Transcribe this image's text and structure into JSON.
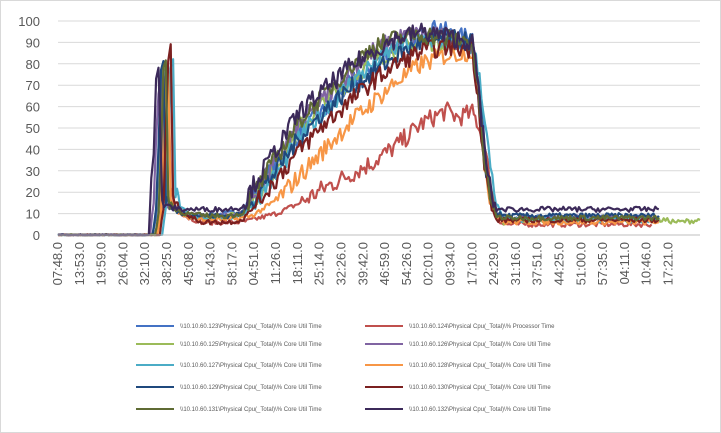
{
  "chart_data": {
    "type": "line",
    "title": "",
    "xlabel": "",
    "ylabel": "",
    "ylim": [
      0,
      100
    ],
    "y_ticks": [
      0,
      10,
      20,
      30,
      40,
      50,
      60,
      70,
      80,
      90,
      100
    ],
    "x_ticks": [
      "07:48.0",
      "13:53.0",
      "19:59.0",
      "26:04.0",
      "32:10.0",
      "38:25.0",
      "45:08.0",
      "51:43.0",
      "58:17.0",
      "04:51.0",
      "11:26.0",
      "18:11.0",
      "25:14.0",
      "32:26.0",
      "39:42.0",
      "46:59.0",
      "54:26.0",
      "02:01.0",
      "09:34.0",
      "17:10.0",
      "24:29.0",
      "31:16.0",
      "37:51.0",
      "44:25.0",
      "51:00.0",
      "57:35.0",
      "04:11.0",
      "10:46.0",
      "17:21.0"
    ],
    "grid": {
      "horizontal": true,
      "vertical": false
    },
    "legend_position": "bottom",
    "x_tick_position": [
      0,
      0.9,
      1.8,
      2.7,
      3.6,
      4.5,
      5.4,
      6.3,
      7.2,
      8.1,
      9.0,
      9.9,
      10.8,
      11.7,
      12.6,
      13.5,
      14.4,
      15.3,
      16.2,
      17.1,
      18.0,
      18.9,
      19.8,
      20.7,
      21.6,
      22.5,
      23.4,
      24.3,
      25.2
    ],
    "x_range": [
      0,
      26.5
    ],
    "series": [
      {
        "name": "\\\\10.10.60.123\\Physical Cpu(_Total)\\% Core Util Time",
        "color": "#4472c4",
        "x": [
          0,
          3.9,
          4.05,
          4.15,
          4.25,
          4.35,
          4.45,
          4.65,
          5.2,
          6,
          7,
          7.6,
          8,
          9,
          10,
          11,
          12,
          13,
          14,
          15,
          15.4,
          15.6,
          16,
          16.5,
          17.1,
          17.35,
          17.6,
          17.9,
          18.1,
          18.3,
          18.5,
          19,
          20,
          21,
          22,
          23,
          24,
          24.8
        ],
        "y": [
          0,
          0,
          9,
          35,
          74,
          80,
          20,
          13,
          10,
          9,
          10,
          11,
          18,
          33,
          48,
          58,
          70,
          80,
          90,
          94,
          97,
          99,
          95,
          92,
          93,
          70,
          45,
          20,
          10,
          7,
          7,
          8,
          8,
          8,
          8,
          8,
          8,
          8
        ]
      },
      {
        "name": "\\\\10.10.60.124\\Physical Cpu(_Total)\\% Processor Time",
        "color": "#c0504d",
        "x": [
          0,
          4.1,
          4.25,
          4.35,
          4.45,
          4.55,
          4.65,
          4.9,
          5.4,
          6,
          7,
          7.6,
          8,
          9,
          10,
          11,
          12,
          13,
          14,
          15,
          16,
          16.5,
          17.1,
          17.35,
          17.6,
          17.9,
          18.1,
          18.4,
          19,
          20,
          21,
          22,
          23,
          24,
          24.5
        ],
        "y": [
          0,
          0,
          12,
          45,
          77,
          82,
          20,
          12,
          8,
          6,
          6,
          6,
          7,
          10,
          15,
          22,
          28,
          34,
          42,
          52,
          58,
          55,
          57,
          52,
          40,
          22,
          8,
          5,
          5,
          5,
          5,
          5,
          5,
          5,
          5
        ]
      },
      {
        "name": "\\\\10.10.60.125\\Physical Cpu(_Total)\\% Core Util Time",
        "color": "#9bbb59",
        "x": [
          0,
          4.0,
          4.15,
          4.25,
          4.35,
          4.45,
          4.55,
          4.8,
          5.4,
          6,
          7,
          7.6,
          8,
          9,
          10,
          11,
          12,
          13,
          14,
          15,
          16,
          17.1,
          17.35,
          17.6,
          17.9,
          18.1,
          18.4,
          19,
          20,
          21,
          22,
          23,
          24,
          25,
          25.6,
          26.5
        ],
        "y": [
          0,
          0,
          10,
          40,
          78,
          81,
          18,
          12,
          9,
          8,
          9,
          10,
          15,
          32,
          50,
          62,
          72,
          82,
          87,
          90,
          91,
          90,
          70,
          38,
          15,
          8,
          6,
          7,
          7,
          7,
          7,
          7,
          7,
          7,
          6,
          7
        ]
      },
      {
        "name": "\\\\10.10.60.126\\Physical Cpu(_Total)\\% Core Util Time",
        "color": "#8064a2",
        "x": [
          0,
          3.8,
          3.95,
          4.05,
          4.15,
          4.25,
          4.4,
          4.6,
          5.2,
          6,
          7,
          7.6,
          8,
          9,
          10,
          11,
          12,
          13,
          14,
          15,
          16,
          17.1,
          17.35,
          17.6,
          17.9,
          18.1,
          18.4,
          19,
          20,
          21,
          22,
          23,
          24,
          24.8
        ],
        "y": [
          0,
          0,
          15,
          45,
          70,
          75,
          16,
          12,
          10,
          9,
          9,
          10,
          17,
          34,
          52,
          64,
          76,
          86,
          92,
          94,
          92,
          90,
          66,
          34,
          14,
          9,
          8,
          8,
          8,
          8,
          8,
          8,
          8,
          8
        ]
      },
      {
        "name": "\\\\10.10.60.127\\Physical Cpu(_Total)\\% Core Util Time",
        "color": "#4bacc6",
        "x": [
          0,
          4.3,
          4.45,
          4.55,
          4.65,
          4.75,
          4.85,
          5.1,
          5.5,
          6,
          7,
          7.6,
          8,
          9,
          10,
          11,
          12,
          13,
          14,
          15,
          16,
          17.1,
          17.4,
          17.7,
          18.0,
          18.3,
          18.5,
          19,
          20,
          21,
          22,
          23,
          24,
          24.8
        ],
        "y": [
          0,
          0,
          12,
          50,
          82,
          85,
          20,
          12,
          9,
          8,
          8,
          9,
          14,
          28,
          46,
          58,
          70,
          80,
          88,
          92,
          90,
          88,
          75,
          45,
          18,
          9,
          7,
          7,
          7,
          7,
          7,
          7,
          7,
          7
        ]
      },
      {
        "name": "\\\\10.10.60.128\\Physical Cpu(_Total)\\% Core Util Time",
        "color": "#f79646",
        "x": [
          0,
          4.1,
          4.25,
          4.35,
          4.45,
          4.55,
          4.65,
          4.9,
          5.4,
          6,
          7,
          7.6,
          8,
          9,
          10,
          11,
          12,
          13,
          14,
          15,
          16,
          17.1,
          17.35,
          17.6,
          17.9,
          18.1,
          18.4,
          19,
          20,
          21,
          22,
          23,
          24,
          24.8
        ],
        "y": [
          0,
          0,
          10,
          42,
          75,
          79,
          18,
          11,
          8,
          7,
          7,
          8,
          9,
          16,
          28,
          40,
          52,
          62,
          72,
          80,
          84,
          86,
          66,
          34,
          14,
          8,
          6,
          6,
          6,
          6,
          6,
          6,
          6,
          6
        ]
      },
      {
        "name": "\\\\10.10.60.129\\Physical Cpu(_Total)\\% Core Util Time",
        "color": "#1f497d",
        "x": [
          0,
          3.9,
          4.05,
          4.15,
          4.25,
          4.35,
          4.45,
          4.7,
          5.2,
          6,
          7,
          7.6,
          8,
          9,
          10,
          11,
          12,
          13,
          14,
          15,
          16,
          17.1,
          17.35,
          17.6,
          17.9,
          18.1,
          18.4,
          19,
          20,
          21,
          22,
          23,
          24,
          24.8
        ],
        "y": [
          0,
          0,
          12,
          44,
          76,
          80,
          18,
          12,
          10,
          9,
          9,
          10,
          16,
          30,
          46,
          58,
          68,
          76,
          84,
          90,
          92,
          90,
          68,
          36,
          16,
          10,
          9,
          9,
          9,
          9,
          9,
          9,
          9,
          9
        ]
      },
      {
        "name": "\\\\10.10.60.130\\Physical Cpu(_Total)\\% Core Util Time",
        "color": "#7b2020",
        "x": [
          0,
          4.2,
          4.35,
          4.45,
          4.55,
          4.65,
          4.75,
          5.0,
          5.5,
          6,
          7,
          7.6,
          8,
          9,
          10,
          11,
          12,
          13,
          14,
          15,
          16,
          17.1,
          17.35,
          17.6,
          17.9,
          18.1,
          18.4,
          19,
          20,
          21,
          22,
          23,
          24,
          24.8
        ],
        "y": [
          0,
          0,
          12,
          48,
          80,
          85,
          20,
          12,
          8,
          6,
          6,
          7,
          12,
          26,
          40,
          52,
          62,
          72,
          80,
          86,
          88,
          87,
          64,
          32,
          12,
          7,
          7,
          7,
          7,
          7,
          7,
          7,
          7,
          7
        ]
      },
      {
        "name": "\\\\10.10.60.131\\Physical Cpu(_Total)\\% Core Util Time",
        "color": "#5f6b34",
        "x": [
          0,
          4.0,
          4.15,
          4.25,
          4.35,
          4.45,
          4.55,
          4.8,
          5.3,
          6,
          7,
          7.6,
          8,
          9,
          10,
          11,
          12,
          13,
          14,
          15,
          16,
          17.1,
          17.35,
          17.6,
          17.9,
          18.1,
          18.4,
          19,
          20,
          21,
          22,
          23,
          24,
          24.8
        ],
        "y": [
          0,
          0,
          10,
          40,
          76,
          80,
          18,
          12,
          10,
          9,
          9,
          10,
          18,
          36,
          54,
          66,
          78,
          88,
          92,
          94,
          92,
          90,
          66,
          34,
          14,
          9,
          8,
          8,
          8,
          8,
          8,
          8,
          8,
          8
        ]
      },
      {
        "name": "\\\\10.10.60.132\\Physical Cpu(_Total)\\% Core Util Time",
        "color": "#3c2a5a",
        "x": [
          0,
          3.75,
          3.85,
          3.95,
          4.05,
          4.15,
          4.3,
          4.6,
          5.2,
          6,
          7,
          7.6,
          8,
          9,
          10,
          11,
          12,
          13,
          14,
          15,
          16,
          17.1,
          17.35,
          17.6,
          17.9,
          18.1,
          18.4,
          19,
          20,
          21,
          22,
          23,
          24,
          24.8
        ],
        "y": [
          0,
          0,
          25,
          40,
          70,
          76,
          16,
          13,
          12,
          12,
          12,
          13,
          22,
          40,
          58,
          68,
          78,
          86,
          92,
          95,
          93,
          90,
          70,
          40,
          18,
          12,
          12,
          12,
          12,
          12,
          12,
          12,
          12,
          12
        ]
      }
    ]
  }
}
